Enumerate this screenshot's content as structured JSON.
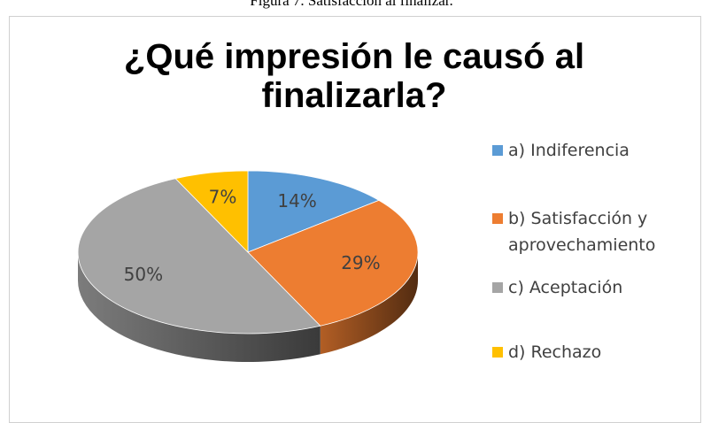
{
  "caption": "Figura 7. Satisfacción al finalizar.",
  "chart_data": {
    "type": "pie3d",
    "title": "¿Qué impresión le causó al finalizarla?",
    "categories": [
      "a) Indiferencia",
      "b) Satisfacción y aprovechamiento",
      "c) Aceptación",
      "d) Rechazo"
    ],
    "values": [
      14,
      29,
      50,
      7
    ],
    "value_labels": [
      "14%",
      "29%",
      "50%",
      "7%"
    ],
    "colors": [
      "#5b9bd5",
      "#ed7d31",
      "#a5a5a5",
      "#ffc000"
    ],
    "legend": "right"
  }
}
